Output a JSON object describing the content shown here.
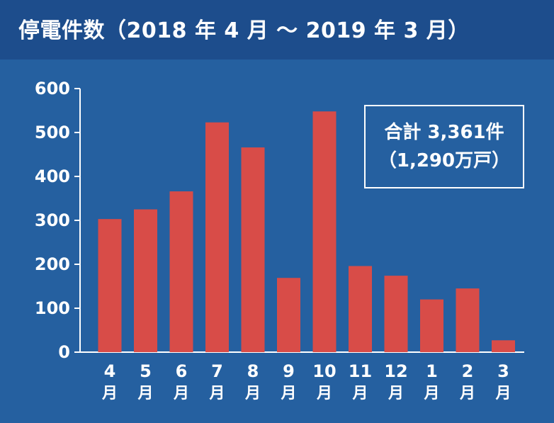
{
  "title": "停電件数（2018 年 4 月 〜 2019 年 3 月）",
  "total": {
    "line1": "合計 3,361件",
    "line2": "（1,290万戸）"
  },
  "colors": {
    "background": "#2560a0",
    "header": "#1d4d8c",
    "bar": "#d84c48",
    "axis": "#ffffff",
    "text": "#ffffff"
  },
  "chart_data": {
    "type": "bar",
    "categories": [
      "4\n月",
      "5\n月",
      "6\n月",
      "7\n月",
      "8\n月",
      "9\n月",
      "10\n月",
      "11\n月",
      "12\n月",
      "1\n月",
      "2\n月",
      "3\n月"
    ],
    "values": [
      303,
      325,
      366,
      523,
      466,
      169,
      548,
      196,
      174,
      120,
      145,
      27
    ],
    "ylim": [
      0,
      600
    ],
    "yticks": [
      0,
      100,
      200,
      300,
      400,
      500,
      600
    ],
    "ytick_labels": [
      "0",
      "100",
      "200",
      "300",
      "400",
      "500",
      "600"
    ],
    "xlabel": "",
    "ylabel": "",
    "grid": false,
    "legend": "none"
  }
}
